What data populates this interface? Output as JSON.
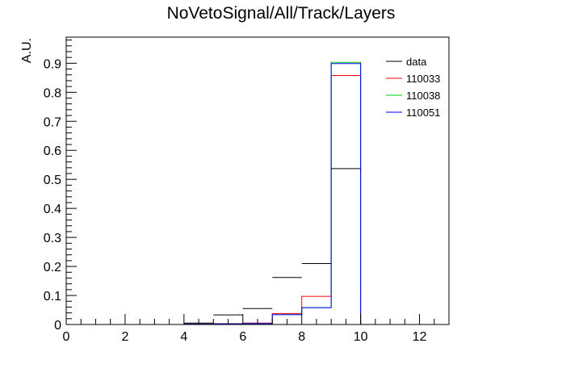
{
  "chart_data": {
    "type": "histogram",
    "title": "NoVetoSignal/All/Track/Layers",
    "xlabel": "",
    "ylabel": "A.U.",
    "xlim": [
      0,
      13
    ],
    "ylim": [
      0,
      0.99
    ],
    "x_ticks": [
      0,
      2,
      4,
      6,
      8,
      10,
      12
    ],
    "y_ticks": [
      0,
      0.1,
      0.2,
      0.3,
      0.4,
      0.5,
      0.6,
      0.7,
      0.8,
      0.9
    ],
    "x_tick_labels": [
      "0",
      "2",
      "4",
      "6",
      "8",
      "10",
      "12"
    ],
    "y_tick_labels": [
      "0",
      "0.1",
      "0.2",
      "0.3",
      "0.4",
      "0.5",
      "0.6",
      "0.7",
      "0.8",
      "0.9"
    ],
    "bin_edges": [
      0,
      1,
      2,
      3,
      4,
      5,
      6,
      7,
      8,
      9,
      10,
      11,
      12,
      13
    ],
    "legend_position": "top-right",
    "series": [
      {
        "name": "data",
        "style": "markers",
        "color": "#000000",
        "values": [
          0,
          0,
          0,
          0,
          0.005,
          0.033,
          0.055,
          0.162,
          0.21,
          0.537,
          0,
          0,
          0
        ]
      },
      {
        "name": "110033",
        "style": "step",
        "color": "#ff0000",
        "values": [
          0,
          0,
          0,
          0,
          0.002,
          0.003,
          0.005,
          0.038,
          0.097,
          0.858,
          0,
          0,
          0
        ]
      },
      {
        "name": "110038",
        "style": "step",
        "color": "#00cc00",
        "values": [
          0,
          0,
          0,
          0,
          0.001,
          0.002,
          0.003,
          0.034,
          0.058,
          0.903,
          0,
          0,
          0
        ]
      },
      {
        "name": "110051",
        "style": "step",
        "color": "#0000ff",
        "values": [
          0,
          0,
          0,
          0,
          0.001,
          0.002,
          0.003,
          0.034,
          0.058,
          0.899,
          0,
          0,
          0
        ]
      }
    ]
  }
}
